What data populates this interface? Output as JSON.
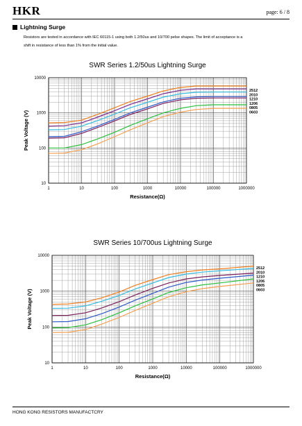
{
  "header": {
    "brand": "HKR",
    "page": "page:  6 / 8"
  },
  "section": {
    "title": "Lightning Surge",
    "intro_line1": "Resistors are tested in accordance with IEC 60115-1 using both 1.2/50us and 10/700 pelse shapes. The limit of acceptance is a",
    "intro_line2": "shift in resistance of less than 1% from the initial value."
  },
  "chart_data": [
    {
      "type": "line",
      "title": "SWR Series 1.2/50us Lightning  Surge",
      "xlabel": "Resistance(Ω)",
      "ylabel": "Peak Voltage (V)",
      "xscale": "log",
      "yscale": "log",
      "xlim": [
        1,
        1000000
      ],
      "ylim": [
        10,
        10000
      ],
      "xticks": [
        "1",
        "10",
        "100",
        "1000",
        "10000",
        "100000",
        "1000000"
      ],
      "yticks": [
        "10",
        "100",
        "1000",
        "10000"
      ],
      "grid": true,
      "legend": "right",
      "series": [
        {
          "name": "2512",
          "color": "#f07f1e",
          "x": [
            1,
            3,
            10,
            30,
            100,
            300,
            1000,
            3000,
            10000,
            30000,
            100000,
            1000000
          ],
          "y": [
            520,
            530,
            620,
            900,
            1400,
            2100,
            3000,
            4200,
            5300,
            5800,
            5800,
            5800
          ]
        },
        {
          "name": "2010",
          "color": "#7b2b8f",
          "x": [
            1,
            3,
            10,
            30,
            100,
            300,
            1000,
            3000,
            10000,
            30000,
            100000,
            1000000
          ],
          "y": [
            420,
            430,
            520,
            750,
            1150,
            1750,
            2500,
            3500,
            4400,
            4800,
            4800,
            4800
          ]
        },
        {
          "name": "1210",
          "color": "#33bce0",
          "x": [
            1,
            3,
            10,
            30,
            100,
            300,
            1000,
            3000,
            10000,
            30000,
            100000,
            1000000
          ],
          "y": [
            330,
            335,
            420,
            600,
            920,
            1400,
            2000,
            2800,
            3500,
            3850,
            3900,
            3900
          ]
        },
        {
          "name": "1206",
          "color": "#2d58c8",
          "x": [
            1,
            3,
            10,
            30,
            100,
            300,
            1000,
            3000,
            10000,
            30000,
            100000,
            1000000
          ],
          "y": [
            210,
            215,
            290,
            420,
            650,
            1000,
            1450,
            2050,
            2600,
            2850,
            2900,
            2900
          ]
        },
        {
          "name": "",
          "color": "#7a1e5c",
          "x": [
            1,
            3,
            10,
            30,
            100,
            300,
            1000,
            3000,
            10000,
            30000,
            100000,
            1000000
          ],
          "y": [
            190,
            195,
            260,
            380,
            590,
            900,
            1300,
            1850,
            2350,
            2600,
            2650,
            2650
          ]
        },
        {
          "name": "0805",
          "color": "#2ac13c",
          "x": [
            1,
            3,
            10,
            30,
            100,
            300,
            1000,
            3000,
            10000,
            30000,
            100000,
            1000000
          ],
          "y": [
            100,
            100,
            125,
            180,
            280,
            440,
            680,
            1000,
            1350,
            1600,
            1700,
            1700
          ]
        },
        {
          "name": "0603",
          "color": "#f5a050",
          "x": [
            1,
            3,
            10,
            30,
            100,
            300,
            1000,
            3000,
            10000,
            30000,
            100000,
            1000000
          ],
          "y": [
            70,
            72,
            90,
            130,
            210,
            330,
            520,
            780,
            1050,
            1250,
            1350,
            1350
          ]
        }
      ]
    },
    {
      "type": "line",
      "title": "SWR Series 10/700us Lightning  Surge",
      "xlabel": "Resistance(Ω)",
      "ylabel": "Peak Voltage (V)",
      "xscale": "log",
      "yscale": "log",
      "xlim": [
        1,
        1000000
      ],
      "ylim": [
        10,
        10000
      ],
      "xticks": [
        "1",
        "10",
        "100",
        "1000",
        "10000",
        "100000",
        "1000000"
      ],
      "yticks": [
        "10",
        "100",
        "1000",
        "10000"
      ],
      "grid": true,
      "legend": "right",
      "series": [
        {
          "name": "2512",
          "color": "#f07f1e",
          "x": [
            1,
            3,
            10,
            30,
            100,
            300,
            1000,
            3000,
            10000,
            30000,
            100000,
            1000000
          ],
          "y": [
            430,
            440,
            500,
            650,
            950,
            1450,
            2100,
            2900,
            3500,
            3900,
            4200,
            5000
          ]
        },
        {
          "name": "2010",
          "color": "#33bce0",
          "x": [
            1,
            3,
            10,
            30,
            100,
            300,
            1000,
            3000,
            10000,
            30000,
            100000,
            1000000
          ],
          "y": [
            330,
            335,
            390,
            520,
            760,
            1150,
            1700,
            2400,
            3000,
            3400,
            3700,
            4300
          ]
        },
        {
          "name": "1210",
          "color": "#7a1e5c",
          "x": [
            1,
            3,
            10,
            30,
            100,
            300,
            1000,
            3000,
            10000,
            30000,
            100000,
            1000000
          ],
          "y": [
            210,
            212,
            250,
            340,
            510,
            780,
            1200,
            1700,
            2200,
            2500,
            2750,
            3200
          ]
        },
        {
          "name": "1206",
          "color": "#2d58c8",
          "x": [
            1,
            3,
            10,
            30,
            100,
            300,
            1000,
            3000,
            10000,
            30000,
            100000,
            1000000
          ],
          "y": [
            140,
            142,
            170,
            235,
            360,
            560,
            870,
            1300,
            1750,
            2050,
            2300,
            2800
          ]
        },
        {
          "name": "0805",
          "color": "#2ac13c",
          "x": [
            1,
            3,
            10,
            30,
            100,
            300,
            1000,
            3000,
            10000,
            30000,
            100000,
            1000000
          ],
          "y": [
            95,
            96,
            115,
            160,
            250,
            390,
            610,
            920,
            1250,
            1500,
            1700,
            2200
          ]
        },
        {
          "name": "0603",
          "color": "#f5a050",
          "x": [
            1,
            3,
            10,
            30,
            100,
            300,
            1000,
            3000,
            10000,
            30000,
            100000,
            1000000
          ],
          "y": [
            70,
            71,
            85,
            120,
            185,
            290,
            460,
            700,
            970,
            1180,
            1350,
            1700
          ]
        }
      ]
    }
  ],
  "footer": {
    "company": "HONG KONG RESISTORS MANUFACTCRY"
  }
}
